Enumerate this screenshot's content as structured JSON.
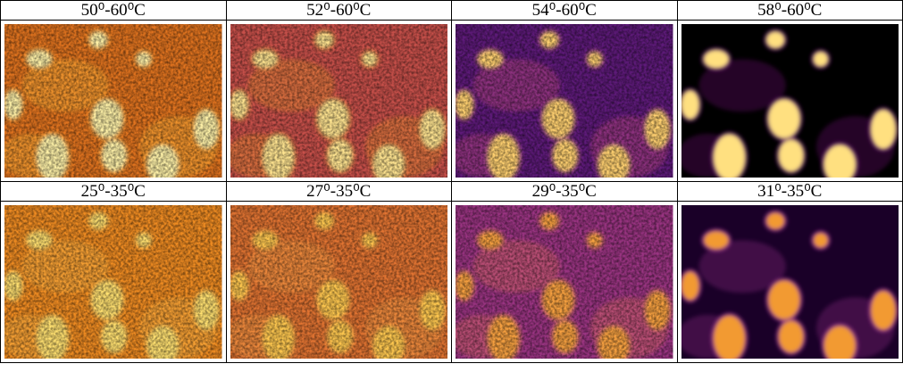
{
  "panels": {
    "rows": [
      [
        "50⁰-60⁰C",
        "52⁰-60⁰C",
        "54⁰-60⁰C",
        "58⁰-60⁰C"
      ],
      [
        "25⁰-35⁰C",
        "27⁰-35⁰C",
        "29⁰-35⁰C",
        "31⁰-35⁰C"
      ]
    ]
  }
}
